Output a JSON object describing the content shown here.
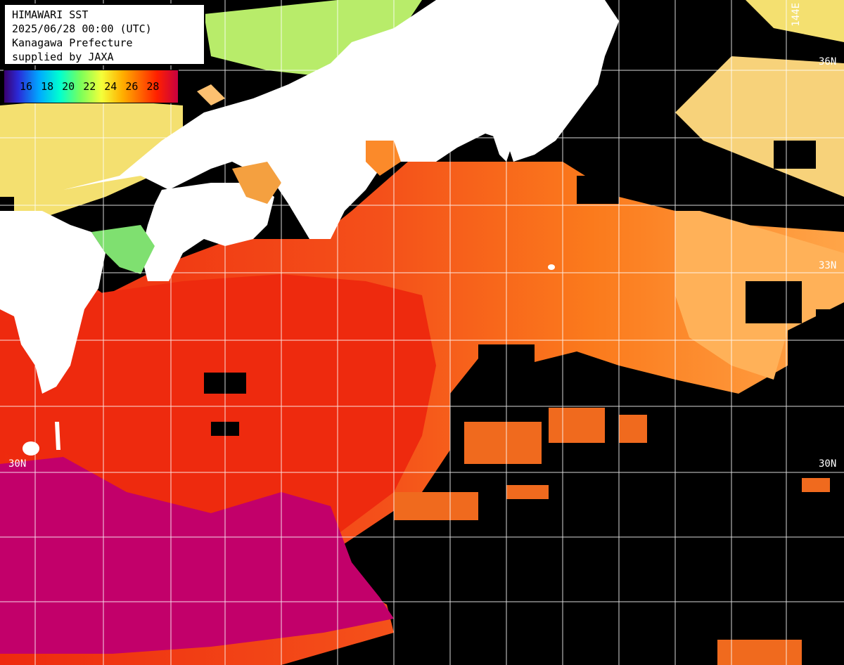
{
  "info": {
    "title": "HIMAWARI SST",
    "datetime": "2025/06/28 00:00 (UTC)",
    "organization": "Kanagawa Prefecture",
    "credit": "supplied by JAXA"
  },
  "legend": {
    "ticks": [
      "16",
      "18",
      "20",
      "22",
      "24",
      "26",
      "28"
    ],
    "colors": [
      "#3a006e",
      "#2a2ad8",
      "#00a8ff",
      "#00ffd0",
      "#7aff5a",
      "#f4ff3a",
      "#ffb000",
      "#ff5a00",
      "#ff2000",
      "#c80040"
    ]
  },
  "grid_labels": {
    "lat_36": "36N",
    "lat_33": "33N",
    "lat_30_left": "30N",
    "lat_30_right": "30N",
    "lon_144": "144E"
  },
  "colors": {
    "land": "#ffffff",
    "no_data": "#000000",
    "warm_pink": "#c2006a",
    "red": "#ee2a0e",
    "orange": "#fb7a1c",
    "light_orange": "#ffa548",
    "yellow": "#f4e070",
    "green": "#90e060",
    "grid": "#ffffff"
  }
}
